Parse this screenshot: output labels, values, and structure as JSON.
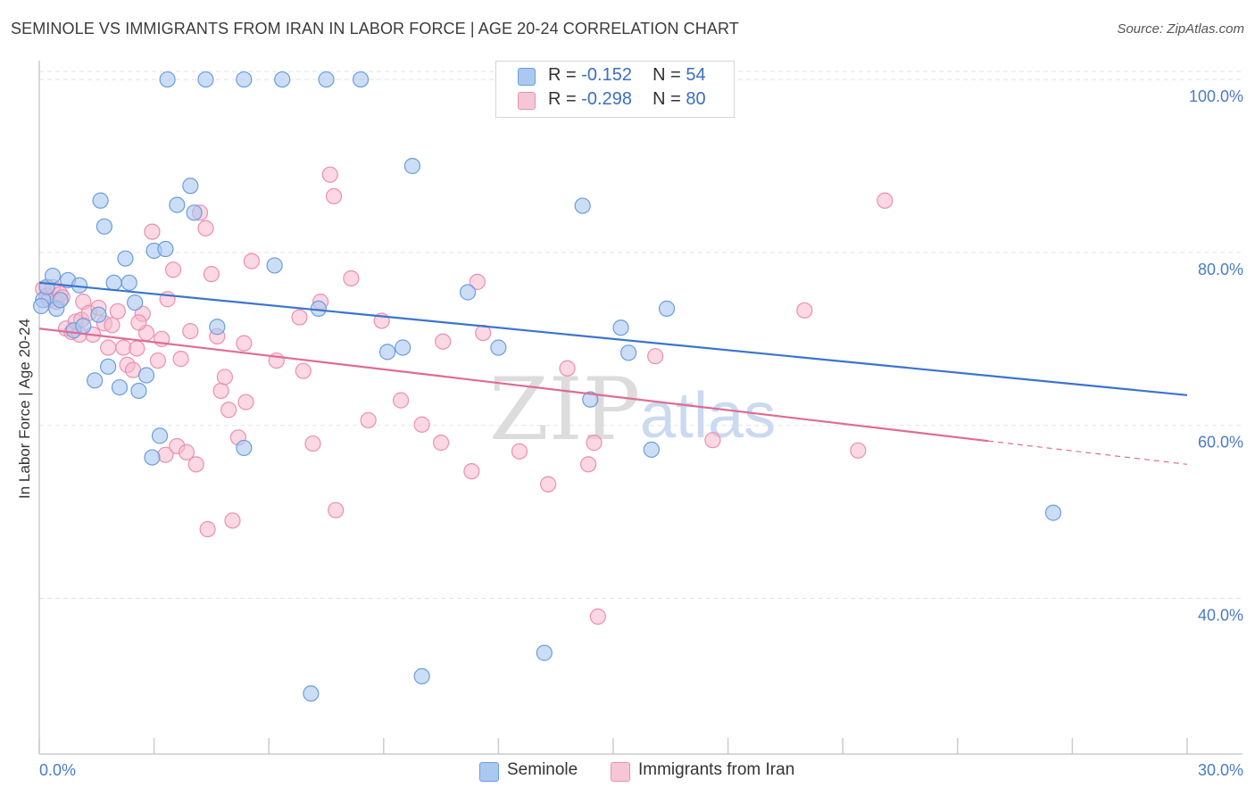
{
  "title": "SEMINOLE VS IMMIGRANTS FROM IRAN IN LABOR FORCE | AGE 20-24 CORRELATION CHART",
  "source": "Source: ZipAtlas.com",
  "watermark": {
    "zip": "ZIP",
    "atlas": "atlas"
  },
  "legend_top": {
    "rows": [
      {
        "r_label": "R =",
        "r_value": "-0.152",
        "n_label": "N =",
        "n_value": "54"
      },
      {
        "r_label": "R =",
        "r_value": "-0.298",
        "n_label": "N =",
        "n_value": "80"
      }
    ]
  },
  "legend_bottom": [
    "Seminole",
    "Immigrants from Iran"
  ],
  "colors": {
    "seminole_fill": "#aac8f0",
    "seminole_stroke": "#6a9de0",
    "seminole_line": "#3a74d0",
    "iran_fill": "#f7b8cc",
    "iran_stroke": "#ec8fae",
    "iran_line": "#e06b93",
    "grid": "#e3e3e3",
    "axis": "#cccccc"
  },
  "chart_data": {
    "type": "scatter",
    "title": "SEMINOLE VS IMMIGRANTS FROM IRAN IN LABOR FORCE | AGE 20-24 CORRELATION CHART",
    "xlabel": "",
    "ylabel": "In Labor Force | Age 20-24",
    "xlim": [
      0,
      30
    ],
    "ylim": [
      22,
      103
    ],
    "x_tick_labels": [
      "0.0%",
      "30.0%"
    ],
    "y_ticks": [
      40,
      60,
      80,
      100
    ],
    "y_tick_labels": [
      "40.0%",
      "60.0%",
      "80.0%",
      "100.0%"
    ],
    "series": [
      {
        "name": "Seminole",
        "R": -0.152,
        "N": 54,
        "trend": {
          "x0": 0,
          "y0": 76.5,
          "x1": 30,
          "y1": 63.5
        },
        "points": [
          [
            0.1,
            74.5
          ],
          [
            0.2,
            76.0
          ],
          [
            0.35,
            77.3
          ],
          [
            0.45,
            73.5
          ],
          [
            0.55,
            74.5
          ],
          [
            0.75,
            76.8
          ],
          [
            0.9,
            71.0
          ],
          [
            1.05,
            76.2
          ],
          [
            1.15,
            71.5
          ],
          [
            1.45,
            65.2
          ],
          [
            1.55,
            72.8
          ],
          [
            1.6,
            86.0
          ],
          [
            1.7,
            83.0
          ],
          [
            1.8,
            66.8
          ],
          [
            1.95,
            76.5
          ],
          [
            2.1,
            64.4
          ],
          [
            2.25,
            79.3
          ],
          [
            2.35,
            76.5
          ],
          [
            2.5,
            74.2
          ],
          [
            2.6,
            64.0
          ],
          [
            2.8,
            65.8
          ],
          [
            2.95,
            56.3
          ],
          [
            3.0,
            80.2
          ],
          [
            3.15,
            58.8
          ],
          [
            3.3,
            80.4
          ],
          [
            3.35,
            100.0
          ],
          [
            3.6,
            85.5
          ],
          [
            3.95,
            87.7
          ],
          [
            4.05,
            84.6
          ],
          [
            4.35,
            100.0
          ],
          [
            4.65,
            71.4
          ],
          [
            5.35,
            100.0
          ],
          [
            5.35,
            57.4
          ],
          [
            6.15,
            78.5
          ],
          [
            6.35,
            100.0
          ],
          [
            7.1,
            29.0
          ],
          [
            7.3,
            73.5
          ],
          [
            7.5,
            100.0
          ],
          [
            8.4,
            100.0
          ],
          [
            9.1,
            68.5
          ],
          [
            9.5,
            69.0
          ],
          [
            9.75,
            90.0
          ],
          [
            10.0,
            31.0
          ],
          [
            11.2,
            75.4
          ],
          [
            12.0,
            69.0
          ],
          [
            13.2,
            33.7
          ],
          [
            14.2,
            85.4
          ],
          [
            14.4,
            63.0
          ],
          [
            15.2,
            71.3
          ],
          [
            15.4,
            68.4
          ],
          [
            16.0,
            57.2
          ],
          [
            16.4,
            73.5
          ],
          [
            26.5,
            49.9
          ],
          [
            0.05,
            73.8
          ]
        ]
      },
      {
        "name": "Immigrants from Iran",
        "R": -0.298,
        "N": 80,
        "trend": {
          "x0": 0,
          "y0": 71.2,
          "x1": 24.8,
          "y1": 58.2
        },
        "trend_dashed": {
          "x0": 24.8,
          "y0": 58.2,
          "x1": 30,
          "y1": 55.5
        },
        "points": [
          [
            0.1,
            75.8
          ],
          [
            0.2,
            75.0
          ],
          [
            0.25,
            74.5
          ],
          [
            0.35,
            76.0
          ],
          [
            0.45,
            74.3
          ],
          [
            0.55,
            75.2
          ],
          [
            0.7,
            71.2
          ],
          [
            0.85,
            70.8
          ],
          [
            0.95,
            72.0
          ],
          [
            1.1,
            72.2
          ],
          [
            1.15,
            74.3
          ],
          [
            1.3,
            73.0
          ],
          [
            1.4,
            70.5
          ],
          [
            1.55,
            73.6
          ],
          [
            1.7,
            71.8
          ],
          [
            1.8,
            69.0
          ],
          [
            1.9,
            71.6
          ],
          [
            2.05,
            73.2
          ],
          [
            2.2,
            69.0
          ],
          [
            2.3,
            67.0
          ],
          [
            2.45,
            66.4
          ],
          [
            2.55,
            68.9
          ],
          [
            2.7,
            72.9
          ],
          [
            2.8,
            70.7
          ],
          [
            2.95,
            82.4
          ],
          [
            3.1,
            67.5
          ],
          [
            3.2,
            70.0
          ],
          [
            3.3,
            56.6
          ],
          [
            3.35,
            74.6
          ],
          [
            3.5,
            78.0
          ],
          [
            3.6,
            57.6
          ],
          [
            3.7,
            67.7
          ],
          [
            3.85,
            56.9
          ],
          [
            3.95,
            70.9
          ],
          [
            4.1,
            55.5
          ],
          [
            4.2,
            84.6
          ],
          [
            4.35,
            82.8
          ],
          [
            4.4,
            48.0
          ],
          [
            4.5,
            77.5
          ],
          [
            4.65,
            70.3
          ],
          [
            4.75,
            64.0
          ],
          [
            4.85,
            65.6
          ],
          [
            4.95,
            61.8
          ],
          [
            5.05,
            49.0
          ],
          [
            5.2,
            58.6
          ],
          [
            5.35,
            69.5
          ],
          [
            5.4,
            62.7
          ],
          [
            5.55,
            79.0
          ],
          [
            6.2,
            67.5
          ],
          [
            6.8,
            72.5
          ],
          [
            6.9,
            66.3
          ],
          [
            7.15,
            57.9
          ],
          [
            7.35,
            74.3
          ],
          [
            7.6,
            89.0
          ],
          [
            7.7,
            86.5
          ],
          [
            7.75,
            50.2
          ],
          [
            8.15,
            77.0
          ],
          [
            8.6,
            60.6
          ],
          [
            8.95,
            72.1
          ],
          [
            9.45,
            62.9
          ],
          [
            10.0,
            60.1
          ],
          [
            10.5,
            58.0
          ],
          [
            10.55,
            69.7
          ],
          [
            11.3,
            54.7
          ],
          [
            11.45,
            76.6
          ],
          [
            11.6,
            70.7
          ],
          [
            12.55,
            57.0
          ],
          [
            13.3,
            53.2
          ],
          [
            13.8,
            66.6
          ],
          [
            14.35,
            55.5
          ],
          [
            14.5,
            58.0
          ],
          [
            14.6,
            37.9
          ],
          [
            16.1,
            68.0
          ],
          [
            17.6,
            58.3
          ],
          [
            20.0,
            73.3
          ],
          [
            21.4,
            57.1
          ],
          [
            22.1,
            86.0
          ],
          [
            0.6,
            74.8
          ],
          [
            1.05,
            70.5
          ],
          [
            2.6,
            71.9
          ]
        ]
      }
    ]
  }
}
